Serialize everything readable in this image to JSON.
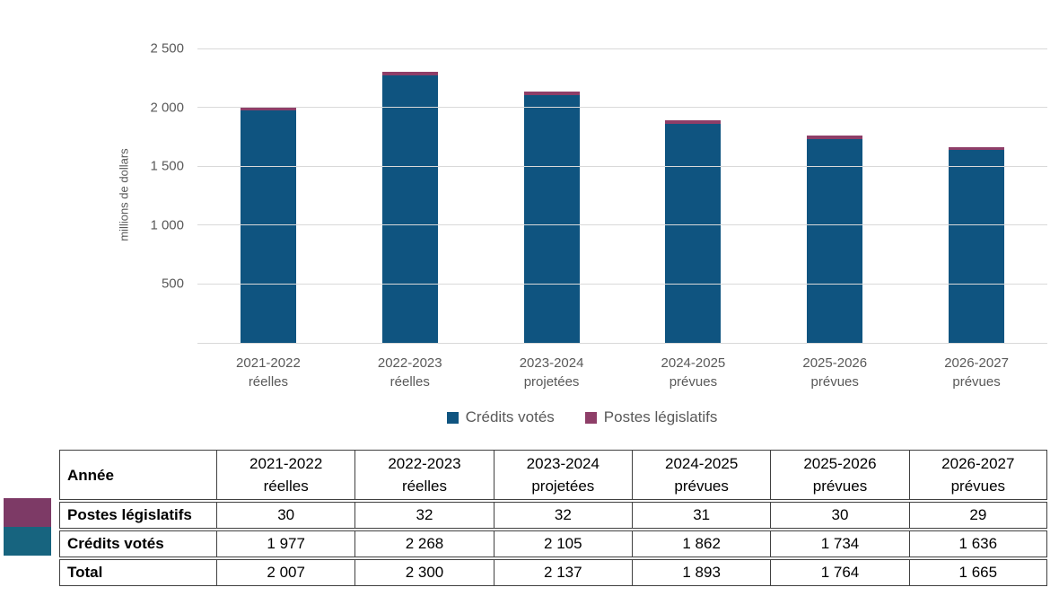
{
  "colors": {
    "credits_votes": "#0F5480",
    "postes_legislatifs": "#8E3E68",
    "table_swatch_credits": "#17647F",
    "table_swatch_postes": "#7D3A66",
    "gridline": "#D9D9D9",
    "axis_text": "#595959",
    "table_border": "#404040"
  },
  "chart_data": {
    "type": "bar",
    "stacked": true,
    "title": "",
    "xlabel": "",
    "ylabel": "millions de dollars",
    "ylim": [
      0,
      2500
    ],
    "grid": true,
    "legend_position": "bottom",
    "yticks": [
      {
        "value": 2500,
        "label": "2 500"
      },
      {
        "value": 2000,
        "label": "2 000"
      },
      {
        "value": 1500,
        "label": "1 500"
      },
      {
        "value": 1000,
        "label": "1 000"
      },
      {
        "value": 500,
        "label": "500"
      },
      {
        "value": 0,
        "label": ""
      }
    ],
    "categories": [
      [
        "2021-2022",
        "réelles"
      ],
      [
        "2022-2023",
        "réelles"
      ],
      [
        "2023-2024",
        "projetées"
      ],
      [
        "2024-2025",
        "prévues"
      ],
      [
        "2025-2026",
        "prévues"
      ],
      [
        "2026-2027",
        "prévues"
      ]
    ],
    "series": [
      {
        "name": "Crédits votés",
        "color_key": "credits_votes",
        "values": [
          1977,
          2268,
          2105,
          1862,
          1734,
          1636
        ]
      },
      {
        "name": "Postes législatifs",
        "color_key": "postes_legislatifs",
        "values": [
          30,
          32,
          32,
          31,
          30,
          29
        ]
      }
    ],
    "totals": [
      2007,
      2300,
      2137,
      1893,
      1764,
      1665
    ]
  },
  "table": {
    "header_label": "Année",
    "columns": [
      [
        "2021-2022",
        "réelles"
      ],
      [
        "2022-2023",
        "réelles"
      ],
      [
        "2023-2024",
        "projetées"
      ],
      [
        "2024-2025",
        "prévues"
      ],
      [
        "2025-2026",
        "prévues"
      ],
      [
        "2026-2027",
        "prévues"
      ]
    ],
    "rows": [
      {
        "label": "Postes législatifs",
        "values": [
          "30",
          "32",
          "32",
          "31",
          "30",
          "29"
        ],
        "swatch_color_key": "table_swatch_postes"
      },
      {
        "label": "Crédits votés",
        "values": [
          "1 977",
          "2 268",
          "2 105",
          "1 862",
          "1 734",
          "1 636"
        ],
        "swatch_color_key": "table_swatch_credits"
      },
      {
        "label": "Total",
        "values": [
          "2 007",
          "2 300",
          "2 137",
          "1 893",
          "1 764",
          "1 665"
        ]
      }
    ]
  }
}
